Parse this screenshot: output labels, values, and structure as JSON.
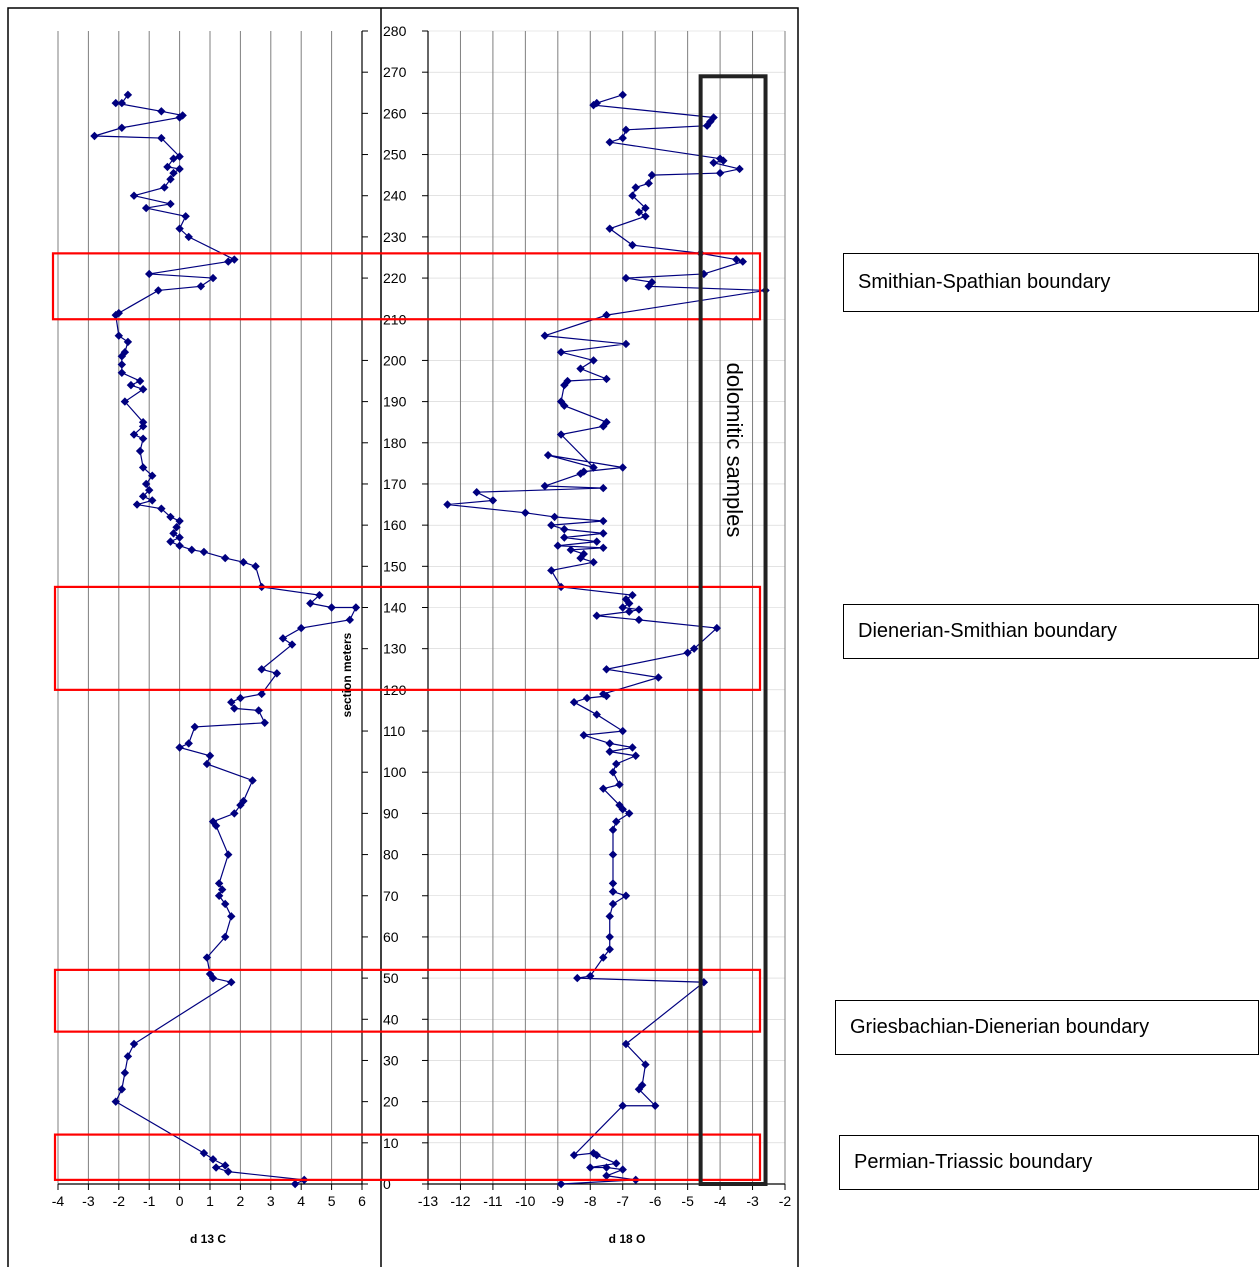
{
  "chart_data": [
    {
      "type": "line",
      "xlabel": "d 13 C",
      "ylabel": "section meters",
      "xlim": [
        -4,
        6
      ],
      "ylim": [
        0,
        280
      ],
      "x_ticks": [
        "-4",
        "-3",
        "-2",
        "-1",
        "0",
        "1",
        "2",
        "3",
        "4",
        "5",
        "6"
      ],
      "y_ticks": [
        "0",
        "10",
        "20",
        "30",
        "40",
        "50",
        "60",
        "70",
        "80",
        "90",
        "100",
        "110",
        "120",
        "130",
        "140",
        "150",
        "160",
        "170",
        "180",
        "190",
        "200",
        "210",
        "220",
        "230",
        "240",
        "250",
        "260",
        "270",
        "280"
      ],
      "grid": true,
      "series": [
        {
          "marker": "diamond",
          "color": "#00007f",
          "points": [
            [
              3.8,
              0
            ],
            [
              4.1,
              1
            ],
            [
              1.6,
              3
            ],
            [
              1.2,
              4
            ],
            [
              1.5,
              4.5
            ],
            [
              1.1,
              6
            ],
            [
              0.8,
              7.5
            ],
            [
              -2.1,
              20
            ],
            [
              -1.9,
              23
            ],
            [
              -1.8,
              27
            ],
            [
              -1.7,
              31
            ],
            [
              -1.5,
              34
            ],
            [
              1.7,
              49
            ],
            [
              1.1,
              50
            ],
            [
              1.0,
              51
            ],
            [
              0.9,
              55
            ],
            [
              1.5,
              60
            ],
            [
              1.7,
              65
            ],
            [
              1.5,
              68
            ],
            [
              1.3,
              70
            ],
            [
              1.4,
              71.5
            ],
            [
              1.3,
              73
            ],
            [
              1.6,
              80
            ],
            [
              1.2,
              87
            ],
            [
              1.1,
              88
            ],
            [
              1.8,
              90
            ],
            [
              2.0,
              92
            ],
            [
              2.1,
              93
            ],
            [
              2.4,
              98
            ],
            [
              0.9,
              102
            ],
            [
              1.0,
              104
            ],
            [
              0.0,
              106
            ],
            [
              0.3,
              107
            ],
            [
              0.5,
              111
            ],
            [
              2.8,
              112
            ],
            [
              2.6,
              115
            ],
            [
              1.8,
              115.5
            ],
            [
              1.7,
              117
            ],
            [
              2.0,
              118
            ],
            [
              2.7,
              119
            ],
            [
              3.2,
              124
            ],
            [
              2.7,
              125
            ],
            [
              3.7,
              131
            ],
            [
              3.4,
              132.5
            ],
            [
              4.0,
              135
            ],
            [
              5.6,
              137
            ],
            [
              5.8,
              140
            ],
            [
              5.0,
              140
            ],
            [
              4.3,
              141
            ],
            [
              4.6,
              143
            ],
            [
              2.7,
              145
            ],
            [
              2.5,
              150
            ],
            [
              2.1,
              151
            ],
            [
              1.5,
              152
            ],
            [
              0.8,
              153.5
            ],
            [
              0.4,
              154
            ],
            [
              0.0,
              155
            ],
            [
              -0.3,
              156
            ],
            [
              0.0,
              157
            ],
            [
              -0.2,
              158
            ],
            [
              -0.1,
              159.5
            ],
            [
              0.0,
              161
            ],
            [
              -0.3,
              162
            ],
            [
              -0.6,
              164
            ],
            [
              -1.4,
              165
            ],
            [
              -0.9,
              166
            ],
            [
              -1.2,
              167
            ],
            [
              -1.0,
              168.5
            ],
            [
              -1.1,
              170
            ],
            [
              -0.9,
              172
            ],
            [
              -1.2,
              174
            ],
            [
              -1.3,
              178
            ],
            [
              -1.2,
              181
            ],
            [
              -1.5,
              182
            ],
            [
              -1.2,
              184
            ],
            [
              -1.2,
              185
            ],
            [
              -1.8,
              190
            ],
            [
              -1.2,
              193
            ],
            [
              -1.6,
              194
            ],
            [
              -1.3,
              195
            ],
            [
              -1.9,
              197
            ],
            [
              -1.9,
              199
            ],
            [
              -1.9,
              201
            ],
            [
              -1.8,
              202
            ],
            [
              -1.7,
              204.5
            ],
            [
              -2.0,
              206
            ],
            [
              -2.1,
              211
            ],
            [
              -2.0,
              211.5
            ],
            [
              -0.7,
              217
            ],
            [
              0.7,
              218
            ],
            [
              1.1,
              220
            ],
            [
              -1.0,
              221
            ],
            [
              1.6,
              224
            ],
            [
              1.8,
              224.5
            ],
            [
              0.3,
              230
            ],
            [
              0.0,
              232
            ],
            [
              0.2,
              235
            ],
            [
              -1.1,
              237
            ],
            [
              -0.3,
              238
            ],
            [
              -1.5,
              240
            ],
            [
              -0.5,
              242
            ],
            [
              -0.3,
              244
            ],
            [
              -0.2,
              245.5
            ],
            [
              0.0,
              246.5
            ],
            [
              -0.4,
              247
            ],
            [
              -0.2,
              249
            ],
            [
              0.0,
              249.5
            ],
            [
              -0.6,
              254
            ],
            [
              -2.8,
              254.5
            ],
            [
              -1.9,
              256.5
            ],
            [
              0.0,
              259
            ],
            [
              0.1,
              259.5
            ],
            [
              -0.6,
              260.5
            ],
            [
              -2.1,
              262.5
            ],
            [
              -1.9,
              262.5
            ],
            [
              -1.7,
              264.5
            ]
          ]
        }
      ]
    },
    {
      "type": "line",
      "xlabel": "d 18 O",
      "xlim": [
        -13,
        -2
      ],
      "ylim": [
        0,
        280
      ],
      "x_ticks": [
        "-13",
        "-12",
        "-11",
        "-10",
        "-9",
        "-8",
        "-7",
        "-6",
        "-5",
        "-4",
        "-3",
        "-2"
      ],
      "y_ticks": [
        "0",
        "10",
        "20",
        "30",
        "40",
        "50",
        "60",
        "70",
        "80",
        "90",
        "100",
        "110",
        "120",
        "130",
        "140",
        "150",
        "160",
        "170",
        "180",
        "190",
        "200",
        "210",
        "220",
        "230",
        "240",
        "250",
        "260",
        "270",
        "280"
      ],
      "grid": true,
      "series": [
        {
          "marker": "diamond",
          "color": "#00007f",
          "points": [
            [
              -8.9,
              0
            ],
            [
              -6.6,
              1
            ],
            [
              -7.5,
              2
            ],
            [
              -7.0,
              3.5
            ],
            [
              -7.5,
              4
            ],
            [
              -8.0,
              4
            ],
            [
              -7.2,
              5
            ],
            [
              -7.8,
              7
            ],
            [
              -7.9,
              7.5
            ],
            [
              -8.5,
              7
            ],
            [
              -7.0,
              19
            ],
            [
              -6.0,
              19
            ],
            [
              -6.5,
              23
            ],
            [
              -6.4,
              24
            ],
            [
              -6.3,
              29
            ],
            [
              -6.9,
              34
            ],
            [
              -4.5,
              49
            ],
            [
              -8.4,
              50
            ],
            [
              -8.0,
              50.5
            ],
            [
              -7.6,
              55
            ],
            [
              -7.4,
              57
            ],
            [
              -7.4,
              60
            ],
            [
              -7.4,
              65
            ],
            [
              -7.3,
              68
            ],
            [
              -6.9,
              70
            ],
            [
              -7.3,
              71
            ],
            [
              -7.3,
              73
            ],
            [
              -7.3,
              80
            ],
            [
              -7.3,
              86
            ],
            [
              -7.2,
              88
            ],
            [
              -6.8,
              90
            ],
            [
              -7.0,
              91
            ],
            [
              -7.1,
              92
            ],
            [
              -7.6,
              96
            ],
            [
              -7.1,
              97
            ],
            [
              -7.3,
              100
            ],
            [
              -7.2,
              102
            ],
            [
              -6.6,
              104
            ],
            [
              -7.4,
              105
            ],
            [
              -6.7,
              106
            ],
            [
              -7.4,
              107
            ],
            [
              -8.2,
              109
            ],
            [
              -7.0,
              110
            ],
            [
              -7.8,
              114
            ],
            [
              -8.5,
              117
            ],
            [
              -8.1,
              118
            ],
            [
              -7.5,
              118.5
            ],
            [
              -7.6,
              119
            ],
            [
              -5.9,
              123
            ],
            [
              -7.5,
              125
            ],
            [
              -5.0,
              129
            ],
            [
              -4.8,
              130
            ],
            [
              -4.1,
              135
            ],
            [
              -6.5,
              137
            ],
            [
              -7.8,
              138
            ],
            [
              -6.8,
              139
            ],
            [
              -6.5,
              139.5
            ],
            [
              -7.0,
              140
            ],
            [
              -6.8,
              141
            ],
            [
              -6.9,
              142
            ],
            [
              -6.7,
              143
            ],
            [
              -8.9,
              145
            ],
            [
              -9.2,
              149
            ],
            [
              -7.9,
              151
            ],
            [
              -8.3,
              152
            ],
            [
              -8.2,
              153
            ],
            [
              -8.6,
              154
            ],
            [
              -7.6,
              154.5
            ],
            [
              -9.0,
              155
            ],
            [
              -7.8,
              156
            ],
            [
              -8.8,
              157
            ],
            [
              -7.6,
              158
            ],
            [
              -8.8,
              159
            ],
            [
              -9.2,
              160
            ],
            [
              -7.6,
              161
            ],
            [
              -9.1,
              162
            ],
            [
              -10.0,
              163
            ],
            [
              -12.4,
              165
            ],
            [
              -11.0,
              166
            ],
            [
              -11.5,
              168
            ],
            [
              -7.6,
              169
            ],
            [
              -9.4,
              169.5
            ],
            [
              -8.3,
              172.5
            ],
            [
              -8.2,
              173
            ],
            [
              -7.0,
              174
            ],
            [
              -9.3,
              177
            ],
            [
              -7.9,
              174
            ],
            [
              -8.9,
              182
            ],
            [
              -7.6,
              184
            ],
            [
              -7.5,
              185
            ],
            [
              -8.8,
              189
            ],
            [
              -8.9,
              190
            ],
            [
              -8.8,
              194
            ],
            [
              -8.7,
              195
            ],
            [
              -7.5,
              195.5
            ],
            [
              -8.3,
              198
            ],
            [
              -7.9,
              200
            ],
            [
              -8.9,
              202
            ],
            [
              -6.9,
              204
            ],
            [
              -9.4,
              206
            ],
            [
              -7.5,
              211
            ],
            [
              -2.6,
              217
            ],
            [
              -6.2,
              218
            ],
            [
              -6.1,
              219
            ],
            [
              -6.9,
              220
            ],
            [
              -4.5,
              221
            ],
            [
              -3.3,
              224
            ],
            [
              -3.5,
              224.5
            ],
            [
              -4.6,
              226
            ],
            [
              -6.7,
              228
            ],
            [
              -7.4,
              232
            ],
            [
              -6.3,
              235
            ],
            [
              -6.5,
              236
            ],
            [
              -6.3,
              237
            ],
            [
              -6.7,
              240
            ],
            [
              -6.6,
              242
            ],
            [
              -6.2,
              243
            ],
            [
              -6.1,
              245
            ],
            [
              -4.0,
              245.5
            ],
            [
              -3.4,
              246.5
            ],
            [
              -4.2,
              248
            ],
            [
              -3.9,
              248.5
            ],
            [
              -4.0,
              249
            ],
            [
              -7.4,
              253
            ],
            [
              -7.0,
              254
            ],
            [
              -6.9,
              256
            ],
            [
              -4.4,
              257
            ],
            [
              -4.3,
              258
            ],
            [
              -4.2,
              259
            ],
            [
              -7.9,
              262
            ],
            [
              -7.8,
              262.5
            ],
            [
              -7.0,
              264.5
            ]
          ]
        }
      ]
    }
  ],
  "annotations": {
    "dolomitic_label": "dolomitic samples",
    "boundaries": [
      {
        "label": "Smithian-Spathian boundary",
        "range_m": [
          210,
          226
        ]
      },
      {
        "label": "Dienerian-Smithian boundary",
        "range_m": [
          120,
          145
        ]
      },
      {
        "label": "Griesbachian-Dienerian boundary",
        "range_m": [
          37,
          52
        ]
      },
      {
        "label": "Permian-Triassic boundary",
        "range_m": [
          1,
          12
        ]
      }
    ],
    "dolomitic_box_x": [
      -4.6,
      -2.6
    ],
    "dolomitic_box_y": [
      0,
      269
    ]
  },
  "colors": {
    "series": "#00007f",
    "boundary_box": "#ff0000",
    "dolomitic_box": "#222222",
    "grid": "#7f7f7f"
  }
}
